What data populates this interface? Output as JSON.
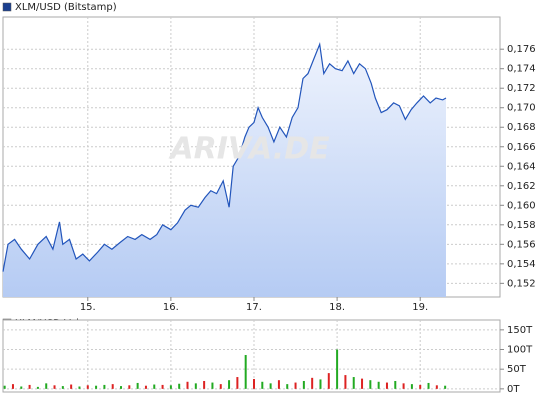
{
  "chart_data": [
    {
      "type": "area",
      "title": "XLM/USD (Bitstamp)",
      "watermark": "ARIVA.DE",
      "legend_color": "#1a3f8f",
      "line_color": "#2255bb",
      "fill_top": "#eef3fd",
      "fill_bottom": "#b5cbf3",
      "grid": true,
      "xlim": [
        13.98,
        19.96
      ],
      "xticks": [
        {
          "value": 15,
          "label": "15."
        },
        {
          "value": 16,
          "label": "16."
        },
        {
          "value": 17,
          "label": "17."
        },
        {
          "value": 18,
          "label": "18."
        },
        {
          "value": 19,
          "label": "19."
        }
      ],
      "ylim": [
        0.1506,
        0.1793
      ],
      "yticks": [
        {
          "value": 0.152,
          "label": "0,152"
        },
        {
          "value": 0.154,
          "label": "0,154"
        },
        {
          "value": 0.156,
          "label": "0,156"
        },
        {
          "value": 0.158,
          "label": "0,158"
        },
        {
          "value": 0.16,
          "label": "0,160"
        },
        {
          "value": 0.162,
          "label": "0,162"
        },
        {
          "value": 0.164,
          "label": "0,164"
        },
        {
          "value": 0.166,
          "label": "0,166"
        },
        {
          "value": 0.168,
          "label": "0,168"
        },
        {
          "value": 0.17,
          "label": "0,170"
        },
        {
          "value": 0.172,
          "label": "0,172"
        },
        {
          "value": 0.174,
          "label": "0,174"
        },
        {
          "value": 0.176,
          "label": "0,176"
        }
      ],
      "x": [
        13.98,
        14.04,
        14.12,
        14.2,
        14.3,
        14.4,
        14.5,
        14.58,
        14.66,
        14.7,
        14.78,
        14.86,
        14.94,
        15.02,
        15.12,
        15.2,
        15.29,
        15.39,
        15.48,
        15.57,
        15.65,
        15.75,
        15.83,
        15.9,
        16.0,
        16.08,
        16.17,
        16.24,
        16.33,
        16.41,
        16.48,
        16.55,
        16.63,
        16.7,
        16.75,
        16.82,
        16.89,
        16.94,
        17.0,
        17.05,
        17.1,
        17.17,
        17.24,
        17.31,
        17.39,
        17.46,
        17.53,
        17.59,
        17.65,
        17.72,
        17.79,
        17.84,
        17.91,
        17.98,
        18.06,
        18.13,
        18.2,
        18.27,
        18.34,
        18.41,
        18.46,
        18.53,
        18.6,
        18.68,
        18.75,
        18.82,
        18.89,
        18.96,
        19.04,
        19.12,
        19.19,
        19.27,
        19.31
      ],
      "values": [
        0.1532,
        0.156,
        0.1565,
        0.1555,
        0.1545,
        0.156,
        0.1568,
        0.1555,
        0.1583,
        0.156,
        0.1565,
        0.1545,
        0.155,
        0.1543,
        0.1552,
        0.156,
        0.1555,
        0.1562,
        0.1568,
        0.1565,
        0.157,
        0.1565,
        0.157,
        0.158,
        0.1575,
        0.1582,
        0.1595,
        0.16,
        0.1598,
        0.1608,
        0.1615,
        0.1612,
        0.1625,
        0.1598,
        0.164,
        0.165,
        0.167,
        0.168,
        0.1685,
        0.17,
        0.169,
        0.168,
        0.1665,
        0.168,
        0.167,
        0.169,
        0.17,
        0.173,
        0.1735,
        0.175,
        0.1765,
        0.1735,
        0.1745,
        0.174,
        0.1738,
        0.1748,
        0.1735,
        0.1745,
        0.174,
        0.1725,
        0.171,
        0.1695,
        0.1698,
        0.1705,
        0.1702,
        0.1688,
        0.1698,
        0.1705,
        0.1712,
        0.1705,
        0.171,
        0.1708,
        0.171
      ]
    },
    {
      "type": "bar",
      "title": "XLM/USD Volumen",
      "legend_color": "#bbbbbb",
      "grid": true,
      "xlim": [
        13.98,
        19.96
      ],
      "xticks": [
        15,
        16,
        17,
        18,
        19
      ],
      "ylim": [
        -8,
        175
      ],
      "yticks": [
        {
          "value": 0,
          "label": "0T"
        },
        {
          "value": 50,
          "label": "50T"
        },
        {
          "value": 100,
          "label": "100T"
        },
        {
          "value": 150,
          "label": "150T"
        }
      ],
      "x": [
        14.0,
        14.1,
        14.2,
        14.3,
        14.4,
        14.5,
        14.6,
        14.7,
        14.8,
        14.9,
        15.0,
        15.1,
        15.2,
        15.3,
        15.4,
        15.5,
        15.6,
        15.7,
        15.8,
        15.9,
        16.0,
        16.1,
        16.2,
        16.3,
        16.4,
        16.5,
        16.6,
        16.7,
        16.8,
        16.9,
        17.0,
        17.1,
        17.2,
        17.3,
        17.4,
        17.5,
        17.6,
        17.7,
        17.8,
        17.9,
        18.0,
        18.1,
        18.2,
        18.3,
        18.4,
        18.5,
        18.6,
        18.7,
        18.8,
        18.9,
        19.0,
        19.1,
        19.2,
        19.3
      ],
      "values": [
        8,
        12,
        6,
        10,
        5,
        14,
        9,
        7,
        11,
        6,
        9,
        8,
        10,
        12,
        7,
        9,
        15,
        8,
        11,
        10,
        9,
        13,
        18,
        14,
        20,
        16,
        12,
        22,
        30,
        86,
        25,
        18,
        14,
        22,
        12,
        16,
        20,
        28,
        24,
        40,
        100,
        35,
        30,
        26,
        22,
        18,
        16,
        20,
        14,
        12,
        10,
        15,
        9,
        8
      ],
      "colors": [
        "#22aa22",
        "#dd2222",
        "#22aa22",
        "#dd2222",
        "#22aa22",
        "#22aa22",
        "#dd2222",
        "#22aa22",
        "#dd2222",
        "#22aa22",
        "#dd2222",
        "#22aa22",
        "#22aa22",
        "#dd2222",
        "#22aa22",
        "#dd2222",
        "#22aa22",
        "#dd2222",
        "#22aa22",
        "#dd2222",
        "#22aa22",
        "#22aa22",
        "#dd2222",
        "#22aa22",
        "#dd2222",
        "#22aa22",
        "#dd2222",
        "#22aa22",
        "#dd2222",
        "#22aa22",
        "#dd2222",
        "#22aa22",
        "#22aa22",
        "#dd2222",
        "#22aa22",
        "#dd2222",
        "#22aa22",
        "#dd2222",
        "#22aa22",
        "#dd2222",
        "#22aa22",
        "#dd2222",
        "#22aa22",
        "#dd2222",
        "#22aa22",
        "#22aa22",
        "#dd2222",
        "#22aa22",
        "#dd2222",
        "#22aa22",
        "#dd2222",
        "#22aa22",
        "#dd2222",
        "#22aa22"
      ]
    }
  ]
}
